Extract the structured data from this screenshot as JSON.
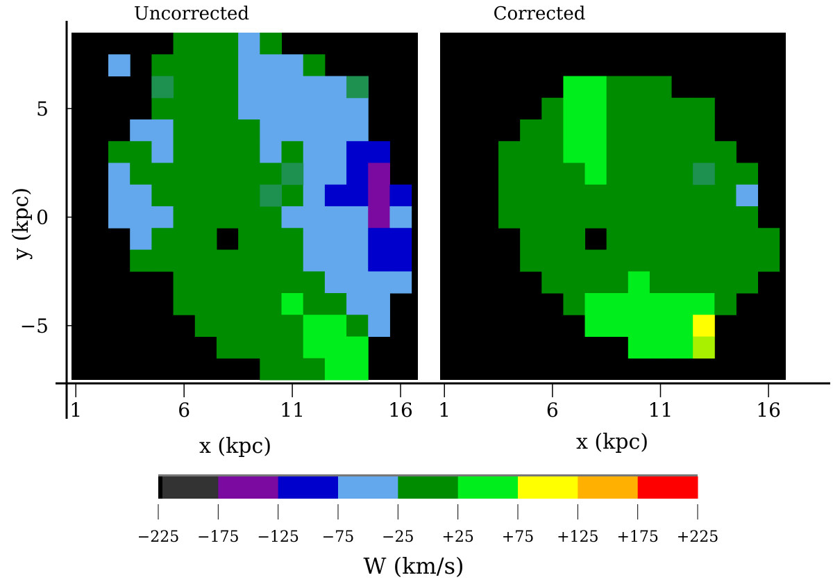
{
  "chart_data": [
    {
      "type": "heatmap",
      "title": "Uncorrected",
      "xlabel": "x (kpc)",
      "ylabel": "y (kpc)",
      "x_ticks": [
        "1",
        "6",
        "11",
        "16"
      ],
      "y_ticks": [
        "5",
        "0",
        "−5"
      ],
      "x_tick_values": [
        1,
        6,
        11,
        16
      ],
      "y_tick_values": [
        5,
        0,
        -5
      ],
      "cell_size_kpc": 1,
      "x_range": [
        0.8,
        16.8
      ],
      "y_range": [
        -7.5,
        8.5
      ],
      "value_unit": "km/s",
      "background_value": "no data",
      "grid_note": "rows listed from top (y=8) to bottom (y=-7), columns from x=1 to x=16; values are W bin centers, null = no data",
      "grid_x_start": 1,
      "grid_y_start": 8,
      "grid": [
        [
          null,
          null,
          null,
          null,
          null,
          0,
          0,
          0,
          -50,
          0,
          null,
          null,
          null,
          null,
          null,
          null
        ],
        [
          null,
          null,
          -50,
          null,
          0,
          0,
          0,
          0,
          -50,
          -50,
          -50,
          0,
          null,
          null,
          null,
          null
        ],
        [
          null,
          null,
          null,
          null,
          0,
          0,
          0,
          0,
          -50,
          -50,
          -50,
          -50,
          -50,
          -50,
          null,
          null
        ],
        [
          null,
          null,
          null,
          null,
          0,
          0,
          0,
          0,
          -50,
          -50,
          -50,
          -50,
          -50,
          -50,
          null,
          null
        ],
        [
          null,
          null,
          null,
          -50,
          -50,
          0,
          0,
          0,
          0,
          -50,
          -50,
          -50,
          -50,
          -50,
          null,
          null
        ],
        [
          null,
          null,
          0,
          0,
          -50,
          0,
          0,
          0,
          0,
          -50,
          0,
          -50,
          -50,
          -100,
          -100,
          null
        ],
        [
          null,
          null,
          -50,
          0,
          0,
          0,
          0,
          0,
          0,
          0,
          0,
          -50,
          -50,
          -100,
          -150,
          null
        ],
        [
          null,
          null,
          -50,
          -50,
          0,
          0,
          0,
          0,
          0,
          0,
          0,
          -50,
          -100,
          -100,
          -150,
          -100
        ],
        [
          null,
          null,
          -50,
          -50,
          -50,
          0,
          0,
          0,
          0,
          0,
          -50,
          -50,
          -50,
          -50,
          -150,
          -50
        ],
        [
          null,
          null,
          null,
          -50,
          0,
          0,
          0,
          null,
          0,
          0,
          0,
          -50,
          -50,
          -50,
          -100,
          -100
        ],
        [
          null,
          null,
          null,
          0,
          0,
          0,
          0,
          0,
          0,
          0,
          0,
          -50,
          -50,
          -50,
          -100,
          -100
        ],
        [
          null,
          null,
          null,
          null,
          null,
          0,
          0,
          0,
          0,
          0,
          0,
          0,
          -50,
          -50,
          -50,
          -50
        ],
        [
          null,
          null,
          null,
          null,
          null,
          0,
          0,
          0,
          0,
          0,
          50,
          0,
          0,
          -50,
          -50,
          null
        ],
        [
          null,
          null,
          null,
          null,
          null,
          null,
          0,
          0,
          0,
          0,
          0,
          50,
          50,
          0,
          -50,
          null
        ],
        [
          null,
          null,
          null,
          null,
          null,
          null,
          null,
          0,
          0,
          0,
          0,
          50,
          50,
          50,
          null,
          null
        ],
        [
          null,
          null,
          null,
          null,
          null,
          null,
          null,
          null,
          null,
          0,
          0,
          0,
          50,
          50,
          null,
          null
        ]
      ]
    },
    {
      "type": "heatmap",
      "title": "Corrected",
      "xlabel": "x (kpc)",
      "ylabel": "",
      "x_ticks": [
        "1",
        "6",
        "11",
        "16"
      ],
      "x_tick_values": [
        1,
        6,
        11,
        16
      ],
      "cell_size_kpc": 1,
      "x_range": [
        0.8,
        16.8
      ],
      "y_range": [
        -7.5,
        8.5
      ],
      "value_unit": "km/s",
      "grid_x_start": 1,
      "grid_y_start": 8,
      "grid": [
        [
          null,
          null,
          null,
          null,
          null,
          null,
          null,
          null,
          null,
          null,
          null,
          null,
          null,
          null,
          null,
          null
        ],
        [
          null,
          null,
          null,
          null,
          null,
          null,
          null,
          null,
          null,
          null,
          null,
          null,
          null,
          null,
          null,
          null
        ],
        [
          null,
          null,
          null,
          null,
          null,
          null,
          50,
          50,
          0,
          0,
          0,
          null,
          null,
          null,
          null,
          null
        ],
        [
          null,
          null,
          null,
          null,
          null,
          0,
          50,
          50,
          0,
          0,
          0,
          0,
          0,
          null,
          null,
          null
        ],
        [
          null,
          null,
          null,
          null,
          0,
          0,
          50,
          50,
          0,
          0,
          0,
          0,
          0,
          null,
          null,
          null
        ],
        [
          null,
          null,
          null,
          0,
          0,
          0,
          50,
          50,
          0,
          0,
          0,
          0,
          0,
          0,
          null,
          null
        ],
        [
          null,
          null,
          null,
          0,
          0,
          0,
          0,
          50,
          0,
          0,
          0,
          0,
          0,
          0,
          0,
          null
        ],
        [
          null,
          null,
          null,
          0,
          0,
          0,
          0,
          0,
          0,
          0,
          0,
          0,
          0,
          0,
          -50,
          null
        ],
        [
          null,
          null,
          null,
          0,
          0,
          0,
          0,
          0,
          0,
          0,
          0,
          0,
          0,
          0,
          0,
          null
        ],
        [
          null,
          null,
          null,
          null,
          0,
          0,
          0,
          null,
          0,
          0,
          0,
          0,
          0,
          0,
          0,
          0
        ],
        [
          null,
          null,
          null,
          null,
          0,
          0,
          0,
          0,
          0,
          0,
          0,
          0,
          0,
          0,
          0,
          0
        ],
        [
          null,
          null,
          null,
          null,
          null,
          0,
          0,
          0,
          0,
          50,
          0,
          0,
          0,
          0,
          0,
          null
        ],
        [
          null,
          null,
          null,
          null,
          null,
          null,
          0,
          50,
          50,
          50,
          50,
          50,
          50,
          0,
          null,
          null
        ],
        [
          null,
          null,
          null,
          null,
          null,
          null,
          null,
          50,
          50,
          50,
          50,
          50,
          100,
          null,
          null,
          null
        ],
        [
          null,
          null,
          null,
          null,
          null,
          null,
          null,
          null,
          null,
          50,
          50,
          50,
          75,
          null,
          null,
          null
        ],
        [
          null,
          null,
          null,
          null,
          null,
          null,
          null,
          null,
          null,
          null,
          null,
          null,
          null,
          null,
          null,
          null
        ]
      ]
    }
  ],
  "colorbar": {
    "label": "W (km/s)",
    "tick_labels": [
      "−225",
      "−175",
      "−125",
      "−75",
      "−25",
      "+25",
      "+75",
      "+125",
      "+175",
      "+225"
    ],
    "tick_values": [
      -225,
      -175,
      -125,
      -75,
      -25,
      25,
      75,
      125,
      175,
      225
    ],
    "bins": [
      {
        "from": -225,
        "to": -175,
        "color": "#333333"
      },
      {
        "from": -175,
        "to": -125,
        "color": "#7a0aa0"
      },
      {
        "from": -125,
        "to": -75,
        "color": "#0000cc"
      },
      {
        "from": -75,
        "to": -25,
        "color": "#63a8ec"
      },
      {
        "from": -25,
        "to": 25,
        "color": "#008c00"
      },
      {
        "from": 25,
        "to": 75,
        "color": "#00ef1c"
      },
      {
        "from": 75,
        "to": 125,
        "color": "#ffff00"
      },
      {
        "from": 125,
        "to": 175,
        "color": "#ffb000"
      },
      {
        "from": 175,
        "to": 225,
        "color": "#ff0000"
      }
    ]
  },
  "special_colors": {
    "no_data": "#000000",
    "edge_teal": "#1e9050",
    "yellow_green": "#a8f000"
  }
}
